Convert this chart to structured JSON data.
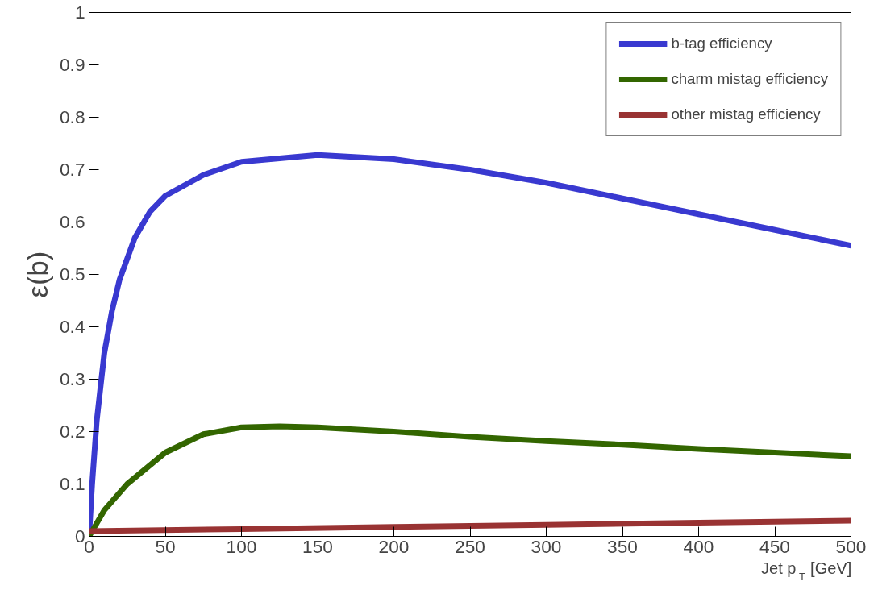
{
  "chart_data": {
    "type": "line",
    "xlabel": "Jet p$_{T}$ [GeV]",
    "ylabel": "ε(b)",
    "xlim": [
      0,
      500
    ],
    "ylim": [
      0,
      1
    ],
    "xticks": [
      0,
      50,
      100,
      150,
      200,
      250,
      300,
      350,
      400,
      450,
      500
    ],
    "yticks": [
      0,
      0.1,
      0.2,
      0.3,
      0.4,
      0.5,
      0.6,
      0.7,
      0.8,
      0.9,
      1
    ],
    "grid": false,
    "legend": "top right",
    "marker": "none",
    "line_style": "solid",
    "series": [
      {
        "name": "b-tag efficiency",
        "color": "#3939d0",
        "x": [
          0,
          2,
          5,
          10,
          15,
          20,
          30,
          40,
          50,
          75,
          100,
          150,
          200,
          250,
          300,
          350,
          400,
          450,
          500
        ],
        "values": [
          0,
          0.1,
          0.22,
          0.35,
          0.43,
          0.49,
          0.57,
          0.62,
          0.65,
          0.69,
          0.715,
          0.728,
          0.72,
          0.7,
          0.675,
          0.645,
          0.615,
          0.585,
          0.555
        ]
      },
      {
        "name": "charm mistag efficiency",
        "color": "#336600",
        "x": [
          0,
          10,
          25,
          50,
          75,
          100,
          125,
          150,
          200,
          250,
          300,
          350,
          400,
          450,
          500
        ],
        "values": [
          0,
          0.05,
          0.1,
          0.16,
          0.195,
          0.208,
          0.21,
          0.208,
          0.2,
          0.19,
          0.182,
          0.175,
          0.167,
          0.16,
          0.153
        ]
      },
      {
        "name": "other mistag efficiency",
        "color": "#993333",
        "x": [
          0,
          100,
          200,
          300,
          400,
          500
        ],
        "values": [
          0.01,
          0.014,
          0.018,
          0.022,
          0.026,
          0.03
        ]
      }
    ]
  }
}
